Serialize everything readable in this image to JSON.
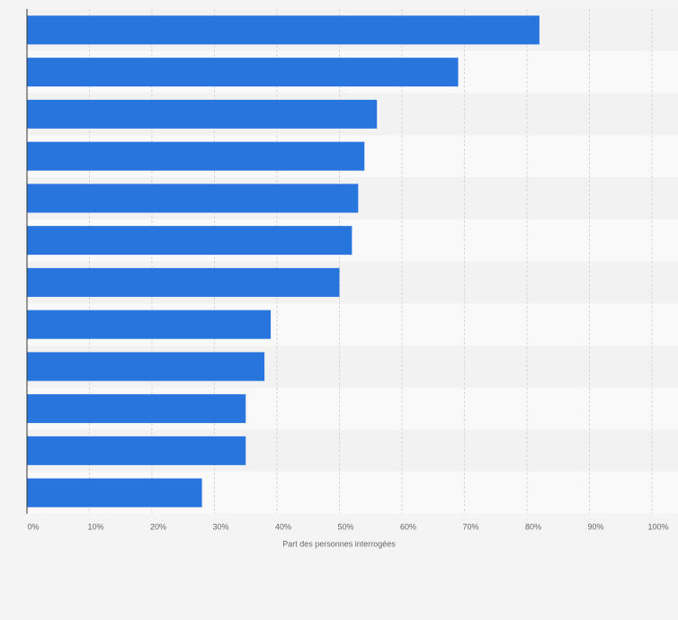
{
  "chart_data": {
    "type": "barh",
    "categories": [
      null,
      null,
      null,
      null,
      null,
      null,
      null,
      null,
      null,
      null,
      null,
      null
    ],
    "values": [
      82,
      69,
      56,
      54,
      53,
      52,
      50,
      39,
      38,
      35,
      35,
      28
    ],
    "color": "#2876dd",
    "xlabel": "Part des personnes interrogées",
    "xlim": [
      0,
      100
    ],
    "xticks": [
      {
        "value": 0,
        "label": "0%"
      },
      {
        "value": 10,
        "label": "10%"
      },
      {
        "value": 20,
        "label": "20%"
      },
      {
        "value": 30,
        "label": "30%"
      },
      {
        "value": 40,
        "label": "40%"
      },
      {
        "value": 50,
        "label": "50%"
      },
      {
        "value": 60,
        "label": "60%"
      },
      {
        "value": 70,
        "label": "70%"
      },
      {
        "value": 80,
        "label": "80%"
      },
      {
        "value": 90,
        "label": "90%"
      },
      {
        "value": 100,
        "label": "100%"
      }
    ],
    "grid": true
  }
}
